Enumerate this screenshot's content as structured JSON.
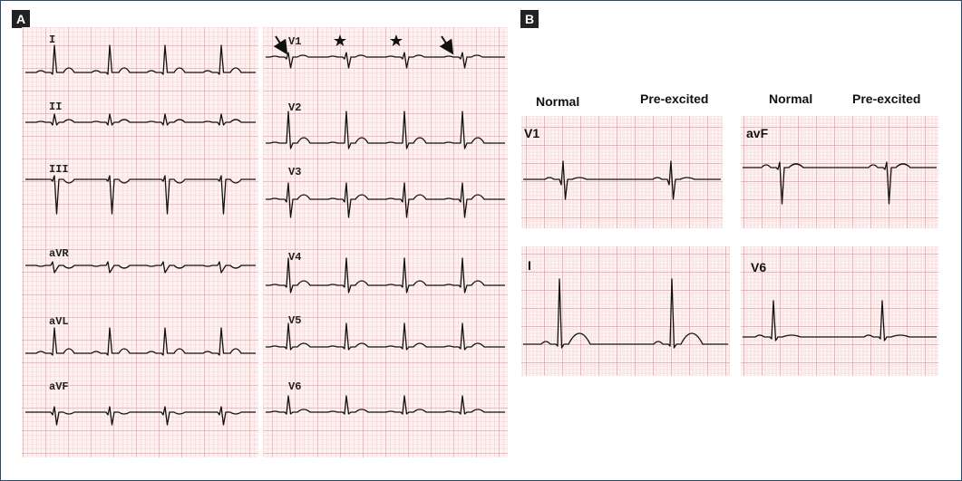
{
  "panel_a": {
    "label": "A",
    "limb_leads": [
      "I",
      "II",
      "III",
      "aVR",
      "aVL",
      "aVF"
    ],
    "precordial_leads": [
      "V1",
      "V2",
      "V3",
      "V4",
      "V5",
      "V6"
    ]
  },
  "panel_b": {
    "label": "B",
    "columns": [
      {
        "normal": "Normal",
        "pre_excited": "Pre-excited"
      },
      {
        "normal": "Normal",
        "pre_excited": "Pre-excited"
      }
    ],
    "leads": [
      "V1",
      "avF",
      "I",
      "V6"
    ]
  }
}
